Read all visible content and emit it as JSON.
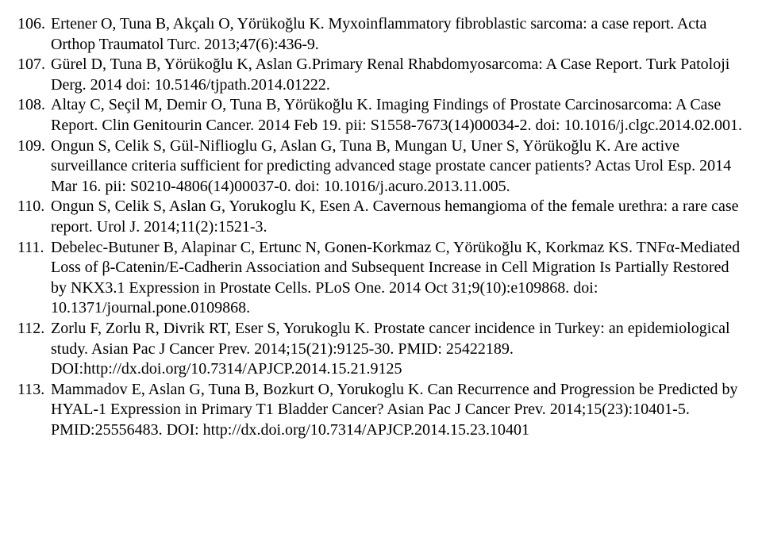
{
  "references": [
    {
      "num": "106.",
      "text": "Ertener O, Tuna B, Akçalı O, Yörükoğlu K. Myxoinflammatory fibroblastic sarcoma: a case report. Acta Orthop Traumatol Turc. 2013;47(6):436-9."
    },
    {
      "num": "107.",
      "text": "Gürel D, Tuna B, Yörükoğlu K, Aslan G.Primary Renal Rhabdomyosarcoma: A Case Report. Turk Patoloji Derg. 2014 doi: 10.5146/tjpath.2014.01222."
    },
    {
      "num": "108.",
      "text": "Altay C, Seçil M, Demir O, Tuna B, Yörükoğlu K. Imaging Findings of Prostate Carcinosarcoma: A Case Report. Clin Genitourin Cancer. 2014 Feb 19. pii: S1558-7673(14)00034-2. doi: 10.1016/j.clgc.2014.02.001."
    },
    {
      "num": "109.",
      "text": "Ongun S, Celik S, Gül-Niflioglu G, Aslan G, Tuna B, Mungan U, Uner S, Yörükoğlu K. Are active surveillance criteria sufficient for predicting advanced stage prostate cancer patients? Actas Urol Esp. 2014 Mar 16. pii: S0210-4806(14)00037-0. doi: 10.1016/j.acuro.2013.11.005."
    },
    {
      "num": "110.",
      "text": "Ongun S, Celik S, Aslan G, Yorukoglu K, Esen A. Cavernous hemangioma of the female urethra: a rare case report. Urol J. 2014;11(2):1521-3."
    },
    {
      "num": "111.",
      "text": "Debelec-Butuner B, Alapinar C, Ertunc N, Gonen-Korkmaz C, Yörükoğlu K, Korkmaz KS. TNFα-Mediated Loss of β-Catenin/E-Cadherin Association and Subsequent Increase in Cell Migration Is Partially Restored by NKX3.1 Expression in Prostate Cells. PLoS One. 2014 Oct 31;9(10):e109868. doi: 10.1371/journal.pone.0109868."
    },
    {
      "num": "112.",
      "text": "Zorlu F, Zorlu R, Divrik RT, Eser S, Yorukoglu K. Prostate cancer incidence in Turkey: an epidemiological study. Asian Pac J Cancer Prev. 2014;15(21):9125-30. PMID: 25422189. DOI:http://dx.doi.org/10.7314/APJCP.2014.15.21.9125"
    },
    {
      "num": "113.",
      "text": "Mammadov E, Aslan G, Tuna B, Bozkurt O, Yorukoglu K. Can Recurrence and Progression be Predicted by HYAL-1 Expression in Primary T1 Bladder Cancer? Asian Pac J Cancer Prev. 2014;15(23):10401-5. PMID:25556483. DOI: http://dx.doi.org/10.7314/APJCP.2014.15.23.10401"
    }
  ]
}
